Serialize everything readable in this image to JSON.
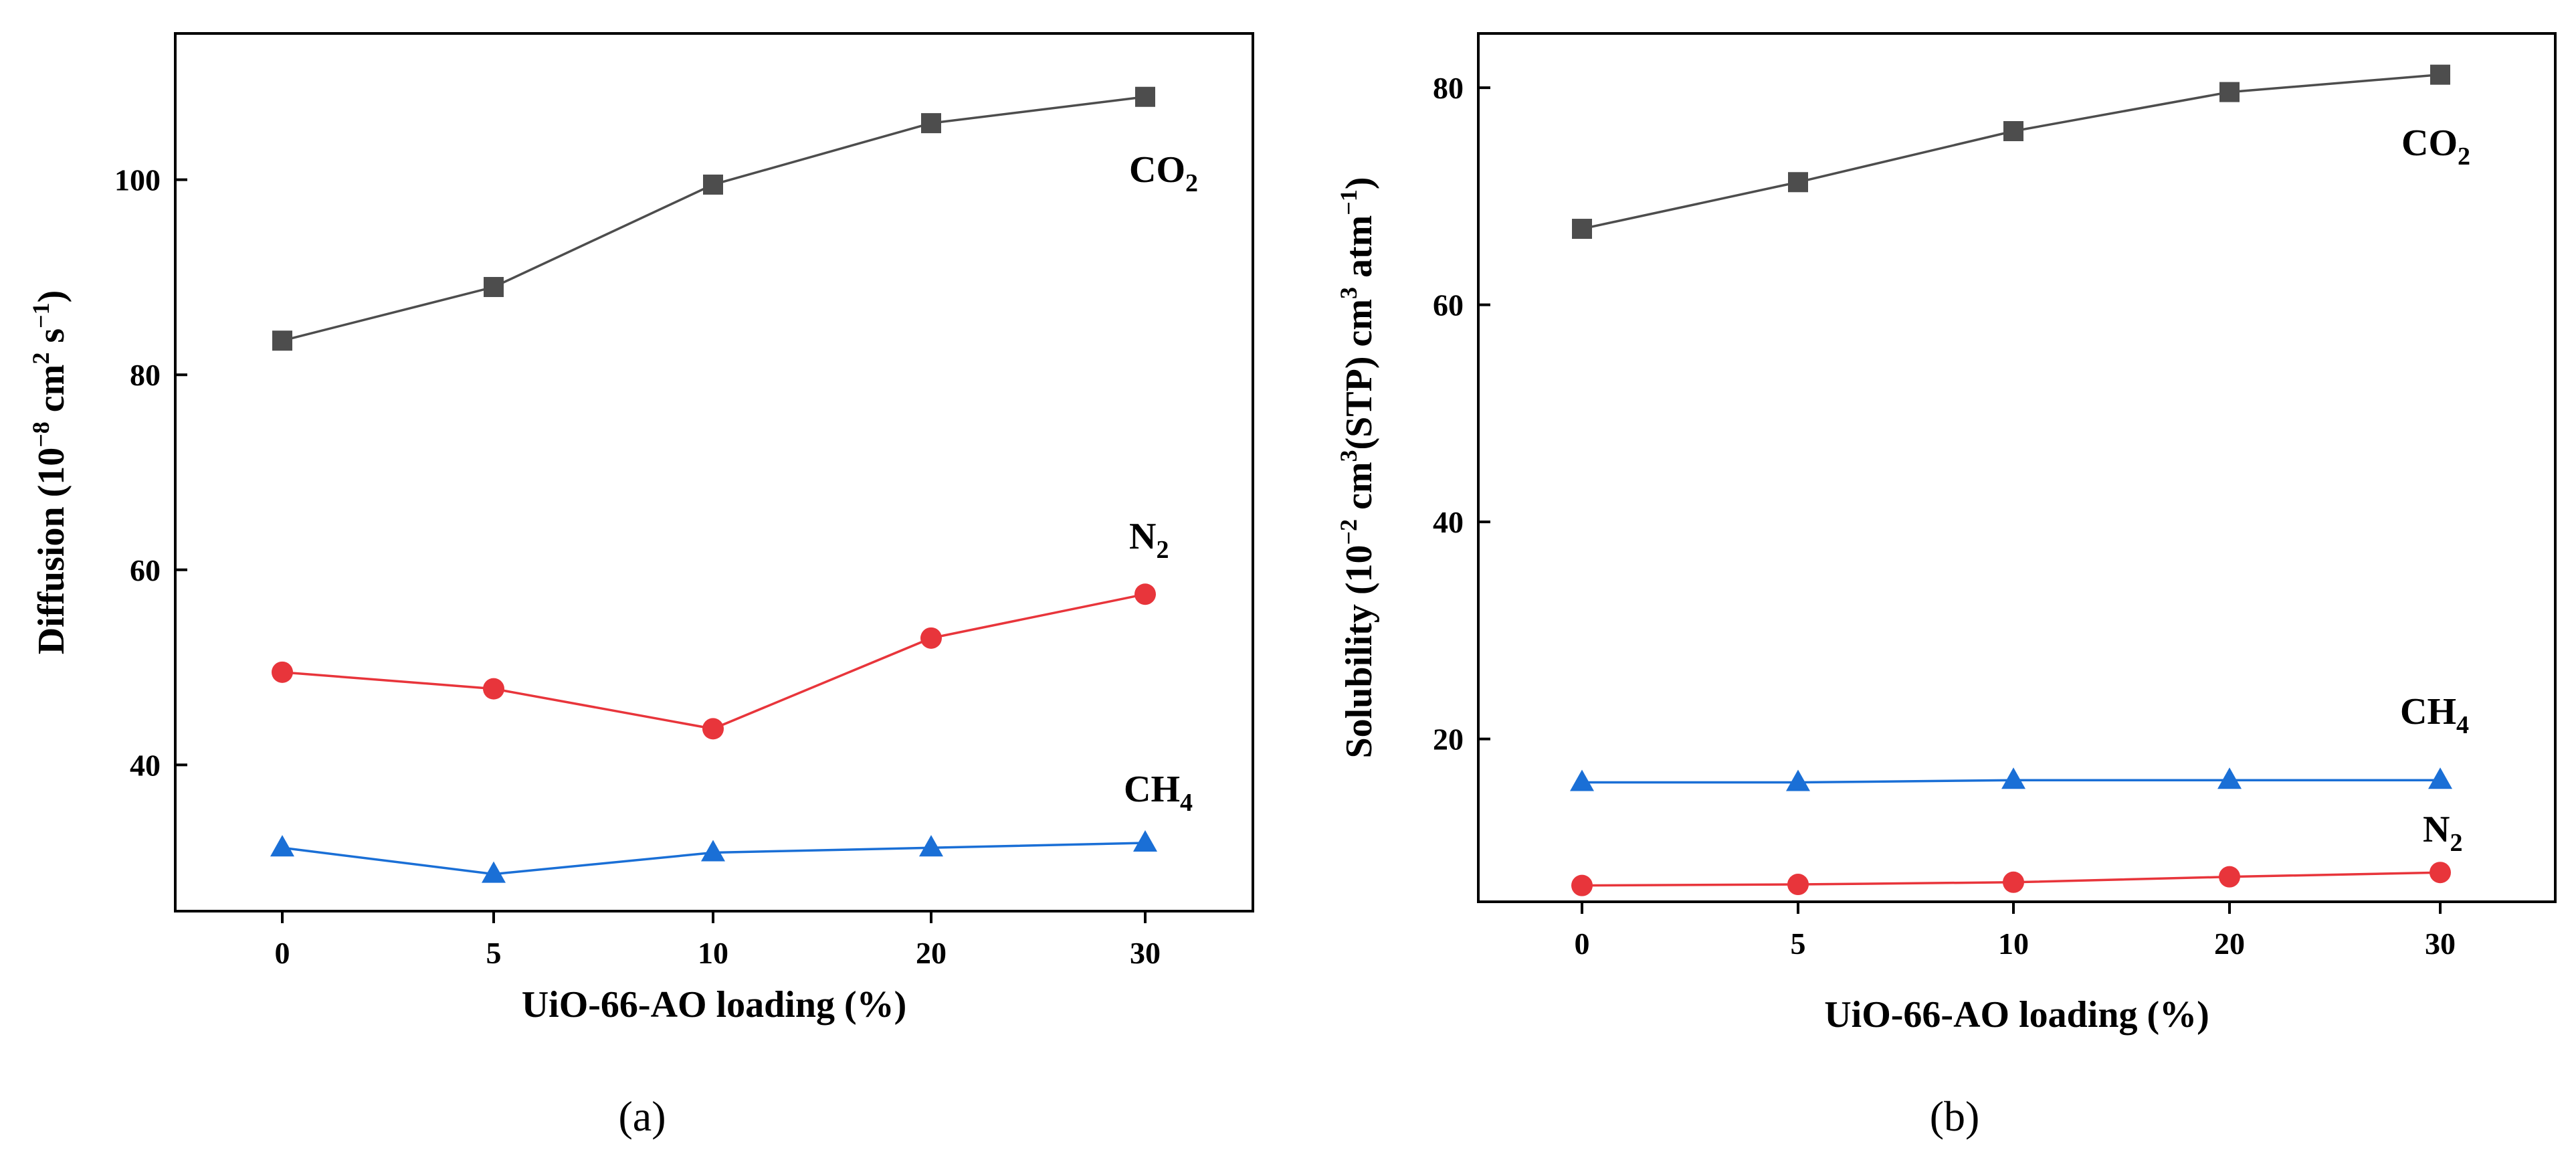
{
  "chart_data": [
    {
      "type": "line",
      "panel": "a",
      "panel_label": "(a)",
      "xlabel": "UiO-66-AO loading (%)",
      "ylabel": "Diffusion (10⁻⁸ cm² s⁻¹)",
      "ylabel_parts": {
        "pre": "Diffusion (10",
        "sup1": "−8",
        "mid": " cm",
        "sup2": "2",
        "mid2": " s",
        "sup3": "−1",
        "post": ")"
      },
      "categories": [
        "0",
        "5",
        "10",
        "20",
        "30"
      ],
      "yticks": [
        40,
        60,
        80,
        100
      ],
      "ylim": [
        25,
        115
      ],
      "series": [
        {
          "name": "CO2",
          "label_base": "CO",
          "label_sub": "2",
          "color": "#4d4d4d",
          "marker": "square",
          "values": [
            83.5,
            89,
            99.5,
            105.8,
            108.5
          ]
        },
        {
          "name": "N2",
          "label_base": "N",
          "label_sub": "2",
          "color": "#e8353b",
          "marker": "circle",
          "values": [
            49.5,
            47.8,
            43.7,
            53,
            57.5
          ]
        },
        {
          "name": "CH4",
          "label_base": "CH",
          "label_sub": "4",
          "color": "#1a6fd6",
          "marker": "triangle",
          "values": [
            31.5,
            28.8,
            31,
            31.5,
            32
          ]
        }
      ]
    },
    {
      "type": "line",
      "panel": "b",
      "panel_label": "(b)",
      "xlabel": "UiO-66-AO loading (%)",
      "ylabel": "Solubility (10⁻² cm³(STP) cm³ atm⁻¹)",
      "ylabel_parts": {
        "pre": "Solubility (10",
        "sup1": "−2",
        "mid": " cm",
        "sup2": "3",
        "mid2": "(STP) cm",
        "sup3": "3",
        "mid3": " atm",
        "sup4": "−1",
        "post": ")"
      },
      "categories": [
        "0",
        "5",
        "10",
        "20",
        "30"
      ],
      "yticks": [
        20,
        40,
        60,
        80
      ],
      "ylim": [
        5,
        85
      ],
      "series": [
        {
          "name": "CO2",
          "label_base": "CO",
          "label_sub": "2",
          "color": "#4d4d4d",
          "marker": "square",
          "values": [
            67,
            71.3,
            76,
            79.6,
            81.2
          ]
        },
        {
          "name": "CH4",
          "label_base": "CH",
          "label_sub": "4",
          "color": "#1a6fd6",
          "marker": "triangle",
          "values": [
            16,
            16,
            16.2,
            16.2,
            16.2
          ]
        },
        {
          "name": "N2",
          "label_base": "N",
          "label_sub": "2",
          "color": "#e8353b",
          "marker": "circle",
          "values": [
            6.5,
            6.6,
            6.8,
            7.3,
            7.7
          ]
        }
      ]
    }
  ]
}
